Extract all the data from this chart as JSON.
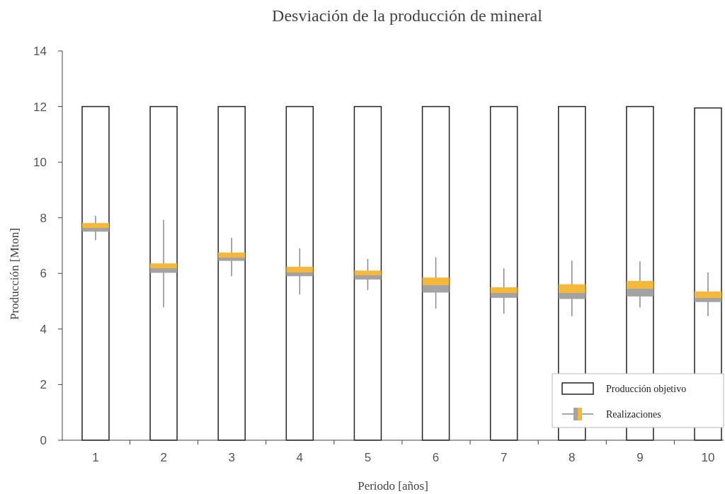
{
  "chart_data": {
    "type": "bar",
    "title": "Desviación de la producción de mineral",
    "xlabel": "Periodo [años]",
    "ylabel": "Producción [Mton]",
    "categories": [
      "1",
      "2",
      "3",
      "4",
      "5",
      "6",
      "7",
      "8",
      "9",
      "10"
    ],
    "ylim": [
      0,
      14
    ],
    "yticks": [
      0,
      2,
      4,
      6,
      8,
      10,
      12,
      14
    ],
    "grid": false,
    "legend": "bottom right",
    "series": [
      {
        "name": "Producción objetivo",
        "color": "#ffffff",
        "values": [
          12,
          12,
          12,
          12,
          12,
          12,
          12,
          12,
          12,
          11.95
        ]
      },
      {
        "name": "Realizaciones",
        "type": "box",
        "color": "#f4b83a",
        "boxes": [
          {
            "low": 7.2,
            "q1": 7.5,
            "median": 7.64,
            "q3": 7.81,
            "high": 8.07
          },
          {
            "low": 4.78,
            "q1": 6.02,
            "median": 6.18,
            "q3": 6.36,
            "high": 7.92
          },
          {
            "low": 5.9,
            "q1": 6.45,
            "median": 6.58,
            "q3": 6.75,
            "high": 7.28
          },
          {
            "low": 5.24,
            "q1": 5.9,
            "median": 6.04,
            "q3": 6.24,
            "high": 6.9
          },
          {
            "low": 5.4,
            "q1": 5.78,
            "median": 5.93,
            "q3": 6.1,
            "high": 6.52
          },
          {
            "low": 4.73,
            "q1": 5.31,
            "median": 5.57,
            "q3": 5.85,
            "high": 6.58
          },
          {
            "low": 4.55,
            "q1": 5.12,
            "median": 5.29,
            "q3": 5.5,
            "high": 6.18
          },
          {
            "low": 4.46,
            "q1": 5.08,
            "median": 5.29,
            "q3": 5.61,
            "high": 6.46
          },
          {
            "low": 4.78,
            "q1": 5.17,
            "median": 5.45,
            "q3": 5.73,
            "high": 6.43
          },
          {
            "low": 4.46,
            "q1": 4.97,
            "median": 5.11,
            "q3": 5.35,
            "high": 6.03
          }
        ]
      }
    ]
  }
}
